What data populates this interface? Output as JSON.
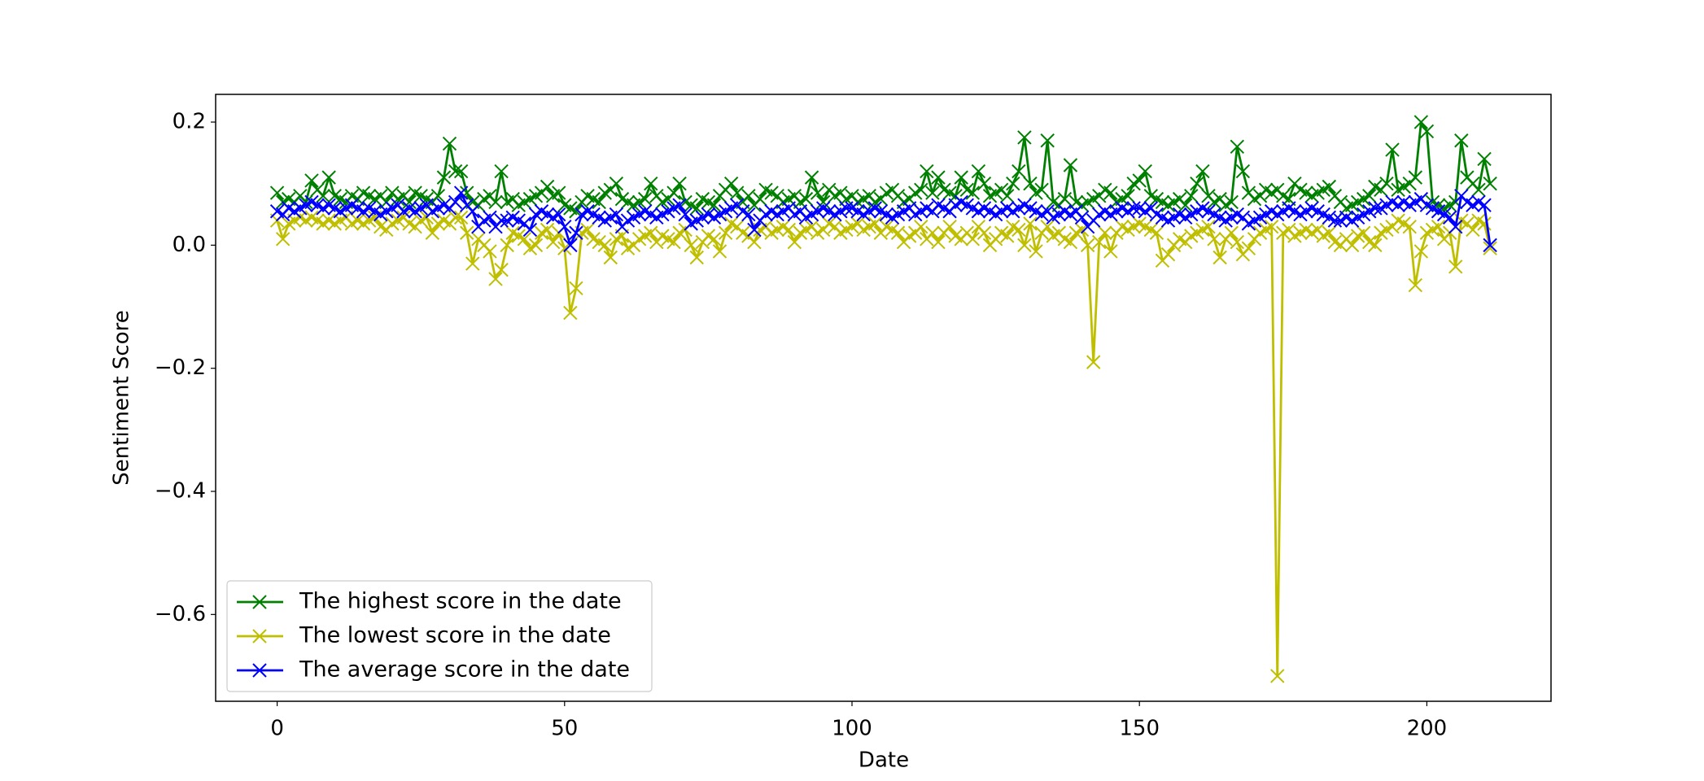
{
  "chart_data": {
    "type": "line",
    "xlabel": "Date",
    "ylabel": "Sentiment Score",
    "x": [
      0,
      1,
      2,
      3,
      4,
      5,
      6,
      7,
      8,
      9,
      10,
      11,
      12,
      13,
      14,
      15,
      16,
      17,
      18,
      19,
      20,
      21,
      22,
      23,
      24,
      25,
      26,
      27,
      28,
      29,
      30,
      31,
      32,
      33,
      34,
      35,
      36,
      37,
      38,
      39,
      40,
      41,
      42,
      43,
      44,
      45,
      46,
      47,
      48,
      49,
      50,
      51,
      52,
      53,
      54,
      55,
      56,
      57,
      58,
      59,
      60,
      61,
      62,
      63,
      64,
      65,
      66,
      67,
      68,
      69,
      70,
      71,
      72,
      73,
      74,
      75,
      76,
      77,
      78,
      79,
      80,
      81,
      82,
      83,
      84,
      85,
      86,
      87,
      88,
      89,
      90,
      91,
      92,
      93,
      94,
      95,
      96,
      97,
      98,
      99,
      100,
      101,
      102,
      103,
      104,
      105,
      106,
      107,
      108,
      109,
      110,
      111,
      112,
      113,
      114,
      115,
      116,
      117,
      118,
      119,
      120,
      121,
      122,
      123,
      124,
      125,
      126,
      127,
      128,
      129,
      130,
      131,
      132,
      133,
      134,
      135,
      136,
      137,
      138,
      139,
      140,
      141,
      142,
      143,
      144,
      145,
      146,
      147,
      148,
      149,
      150,
      151,
      152,
      153,
      154,
      155,
      156,
      157,
      158,
      159,
      160,
      161,
      162,
      163,
      164,
      165,
      166,
      167,
      168,
      169,
      170,
      171,
      172,
      173,
      174,
      175,
      176,
      177,
      178,
      179,
      180,
      181,
      182,
      183,
      184,
      185,
      186,
      187,
      188,
      189,
      190,
      191,
      192,
      193,
      194,
      195,
      196,
      197,
      198,
      199,
      200,
      201,
      202,
      203,
      204,
      205,
      206,
      207,
      208,
      209,
      210,
      211
    ],
    "series": [
      {
        "name": "The highest score in the date",
        "color": "#008000",
        "values": [
          0.085,
          0.07,
          0.075,
          0.07,
          0.08,
          0.07,
          0.105,
          0.09,
          0.08,
          0.11,
          0.08,
          0.075,
          0.07,
          0.08,
          0.075,
          0.085,
          0.08,
          0.075,
          0.08,
          0.07,
          0.085,
          0.075,
          0.08,
          0.07,
          0.085,
          0.08,
          0.075,
          0.07,
          0.08,
          0.11,
          0.165,
          0.12,
          0.12,
          0.085,
          0.07,
          0.065,
          0.075,
          0.08,
          0.07,
          0.12,
          0.07,
          0.075,
          0.065,
          0.07,
          0.075,
          0.08,
          0.085,
          0.095,
          0.08,
          0.085,
          0.065,
          0.06,
          0.055,
          0.07,
          0.08,
          0.075,
          0.07,
          0.085,
          0.09,
          0.1,
          0.075,
          0.07,
          0.065,
          0.07,
          0.075,
          0.1,
          0.08,
          0.07,
          0.075,
          0.085,
          0.1,
          0.07,
          0.065,
          0.06,
          0.075,
          0.07,
          0.065,
          0.08,
          0.09,
          0.1,
          0.085,
          0.07,
          0.08,
          0.065,
          0.075,
          0.09,
          0.085,
          0.08,
          0.07,
          0.075,
          0.08,
          0.07,
          0.075,
          0.11,
          0.085,
          0.07,
          0.09,
          0.08,
          0.085,
          0.075,
          0.08,
          0.07,
          0.075,
          0.08,
          0.07,
          0.075,
          0.085,
          0.09,
          0.08,
          0.07,
          0.075,
          0.085,
          0.09,
          0.12,
          0.085,
          0.11,
          0.09,
          0.085,
          0.08,
          0.11,
          0.09,
          0.085,
          0.12,
          0.1,
          0.08,
          0.085,
          0.09,
          0.08,
          0.1,
          0.12,
          0.175,
          0.1,
          0.085,
          0.09,
          0.17,
          0.07,
          0.065,
          0.075,
          0.13,
          0.07,
          0.065,
          0.07,
          0.075,
          0.08,
          0.09,
          0.085,
          0.07,
          0.075,
          0.08,
          0.1,
          0.105,
          0.12,
          0.08,
          0.075,
          0.07,
          0.065,
          0.07,
          0.075,
          0.065,
          0.08,
          0.1,
          0.12,
          0.08,
          0.07,
          0.075,
          0.065,
          0.07,
          0.16,
          0.12,
          0.085,
          0.075,
          0.08,
          0.09,
          0.085,
          0.09,
          0.08,
          0.075,
          0.1,
          0.09,
          0.085,
          0.08,
          0.085,
          0.09,
          0.095,
          0.08,
          0.07,
          0.06,
          0.065,
          0.07,
          0.075,
          0.08,
          0.095,
          0.09,
          0.1,
          0.155,
          0.09,
          0.095,
          0.1,
          0.11,
          0.2,
          0.185,
          0.07,
          0.065,
          0.06,
          0.065,
          0.07,
          0.17,
          0.11,
          0.1,
          0.09,
          0.14,
          0.1
        ]
      },
      {
        "name": "The lowest score in the date",
        "color": "#bfbf00",
        "values": [
          0.04,
          0.01,
          0.035,
          0.04,
          0.045,
          0.04,
          0.045,
          0.04,
          0.035,
          0.04,
          0.035,
          0.04,
          0.045,
          0.035,
          0.04,
          0.035,
          0.04,
          0.045,
          0.03,
          0.025,
          0.035,
          0.04,
          0.045,
          0.035,
          0.03,
          0.04,
          0.045,
          0.02,
          0.035,
          0.04,
          0.035,
          0.045,
          0.045,
          0.02,
          -0.03,
          0.01,
          0.0,
          -0.01,
          -0.055,
          -0.04,
          0.0,
          0.02,
          0.015,
          0.01,
          -0.005,
          0.0,
          0.02,
          0.025,
          0.005,
          0.02,
          -0.005,
          -0.11,
          -0.07,
          0.02,
          0.025,
          0.01,
          0.005,
          0.0,
          -0.02,
          0.01,
          0.015,
          -0.005,
          0.0,
          0.01,
          0.015,
          0.02,
          0.005,
          0.015,
          0.01,
          0.005,
          0.02,
          0.025,
          0.0,
          -0.02,
          0.005,
          0.015,
          0.01,
          -0.01,
          0.02,
          0.035,
          0.03,
          0.02,
          0.015,
          0.005,
          0.025,
          0.03,
          0.02,
          0.025,
          0.03,
          0.025,
          0.005,
          0.02,
          0.025,
          0.03,
          0.02,
          0.025,
          0.035,
          0.03,
          0.02,
          0.025,
          0.03,
          0.035,
          0.025,
          0.03,
          0.035,
          0.02,
          0.03,
          0.025,
          0.02,
          0.005,
          0.015,
          0.02,
          0.03,
          0.01,
          0.02,
          0.005,
          0.02,
          0.03,
          0.015,
          0.01,
          0.02,
          0.01,
          0.03,
          0.02,
          0.0,
          0.01,
          0.02,
          0.015,
          0.03,
          0.025,
          0.0,
          0.035,
          -0.01,
          0.02,
          0.03,
          0.015,
          0.02,
          0.01,
          0.005,
          0.02,
          0.025,
          0.0,
          -0.19,
          0.005,
          0.02,
          -0.01,
          0.02,
          0.03,
          0.025,
          0.03,
          0.035,
          0.03,
          0.025,
          0.02,
          -0.025,
          -0.015,
          0.0,
          0.01,
          0.005,
          0.015,
          0.02,
          0.025,
          0.03,
          0.01,
          -0.02,
          0.01,
          0.02,
          0.005,
          -0.015,
          -0.005,
          0.01,
          0.02,
          0.025,
          0.03,
          -0.7,
          0.02,
          0.025,
          0.015,
          0.02,
          0.025,
          0.02,
          0.025,
          0.015,
          0.02,
          0.005,
          0.0,
          0.01,
          0.0,
          0.015,
          0.02,
          0.005,
          0.0,
          0.02,
          0.025,
          0.03,
          0.04,
          0.035,
          0.03,
          -0.065,
          -0.01,
          0.02,
          0.025,
          0.03,
          0.01,
          0.02,
          -0.035,
          0.04,
          0.035,
          0.025,
          0.04,
          0.035,
          -0.005
        ]
      },
      {
        "name": "The average score in the date",
        "color": "#0000ff",
        "values": [
          0.055,
          0.05,
          0.06,
          0.055,
          0.06,
          0.065,
          0.07,
          0.065,
          0.06,
          0.065,
          0.06,
          0.055,
          0.06,
          0.065,
          0.06,
          0.055,
          0.06,
          0.055,
          0.05,
          0.055,
          0.06,
          0.065,
          0.055,
          0.06,
          0.055,
          0.06,
          0.065,
          0.055,
          0.06,
          0.065,
          0.06,
          0.07,
          0.085,
          0.065,
          0.055,
          0.03,
          0.04,
          0.045,
          0.03,
          0.04,
          0.04,
          0.045,
          0.04,
          0.035,
          0.025,
          0.05,
          0.055,
          0.05,
          0.045,
          0.05,
          0.03,
          0.0,
          0.02,
          0.05,
          0.055,
          0.05,
          0.045,
          0.04,
          0.045,
          0.05,
          0.03,
          0.04,
          0.045,
          0.05,
          0.055,
          0.05,
          0.045,
          0.05,
          0.055,
          0.06,
          0.065,
          0.05,
          0.035,
          0.04,
          0.045,
          0.05,
          0.045,
          0.05,
          0.055,
          0.06,
          0.065,
          0.055,
          0.05,
          0.025,
          0.04,
          0.05,
          0.055,
          0.05,
          0.055,
          0.06,
          0.05,
          0.055,
          0.045,
          0.05,
          0.055,
          0.06,
          0.055,
          0.05,
          0.055,
          0.06,
          0.06,
          0.055,
          0.05,
          0.055,
          0.06,
          0.055,
          0.05,
          0.045,
          0.05,
          0.055,
          0.06,
          0.05,
          0.055,
          0.06,
          0.055,
          0.065,
          0.06,
          0.055,
          0.065,
          0.07,
          0.065,
          0.06,
          0.055,
          0.06,
          0.055,
          0.05,
          0.055,
          0.06,
          0.055,
          0.06,
          0.065,
          0.06,
          0.055,
          0.05,
          0.055,
          0.045,
          0.05,
          0.055,
          0.05,
          0.055,
          0.045,
          0.03,
          0.04,
          0.05,
          0.055,
          0.05,
          0.055,
          0.06,
          0.055,
          0.06,
          0.06,
          0.055,
          0.06,
          0.05,
          0.045,
          0.04,
          0.045,
          0.05,
          0.045,
          0.05,
          0.055,
          0.06,
          0.055,
          0.05,
          0.045,
          0.04,
          0.045,
          0.05,
          0.045,
          0.035,
          0.04,
          0.045,
          0.05,
          0.055,
          0.05,
          0.055,
          0.06,
          0.055,
          0.05,
          0.055,
          0.06,
          0.055,
          0.05,
          0.045,
          0.04,
          0.04,
          0.045,
          0.04,
          0.045,
          0.05,
          0.055,
          0.06,
          0.06,
          0.065,
          0.07,
          0.065,
          0.07,
          0.065,
          0.07,
          0.075,
          0.065,
          0.06,
          0.055,
          0.05,
          0.045,
          0.03,
          0.08,
          0.07,
          0.065,
          0.07,
          0.065,
          0.0
        ]
      }
    ],
    "xlim": [
      -10.7,
      221.6
    ],
    "ylim": [
      -0.741,
      0.245
    ],
    "xticks": [
      0,
      50,
      100,
      150,
      200
    ],
    "yticks": [
      {
        "value": -0.6,
        "label": "−0.6"
      },
      {
        "value": -0.4,
        "label": "−0.4"
      },
      {
        "value": -0.2,
        "label": "−0.2"
      },
      {
        "value": 0,
        "label": "0.0"
      },
      0.2
    ],
    "legend": "lower left",
    "marker": "x"
  }
}
